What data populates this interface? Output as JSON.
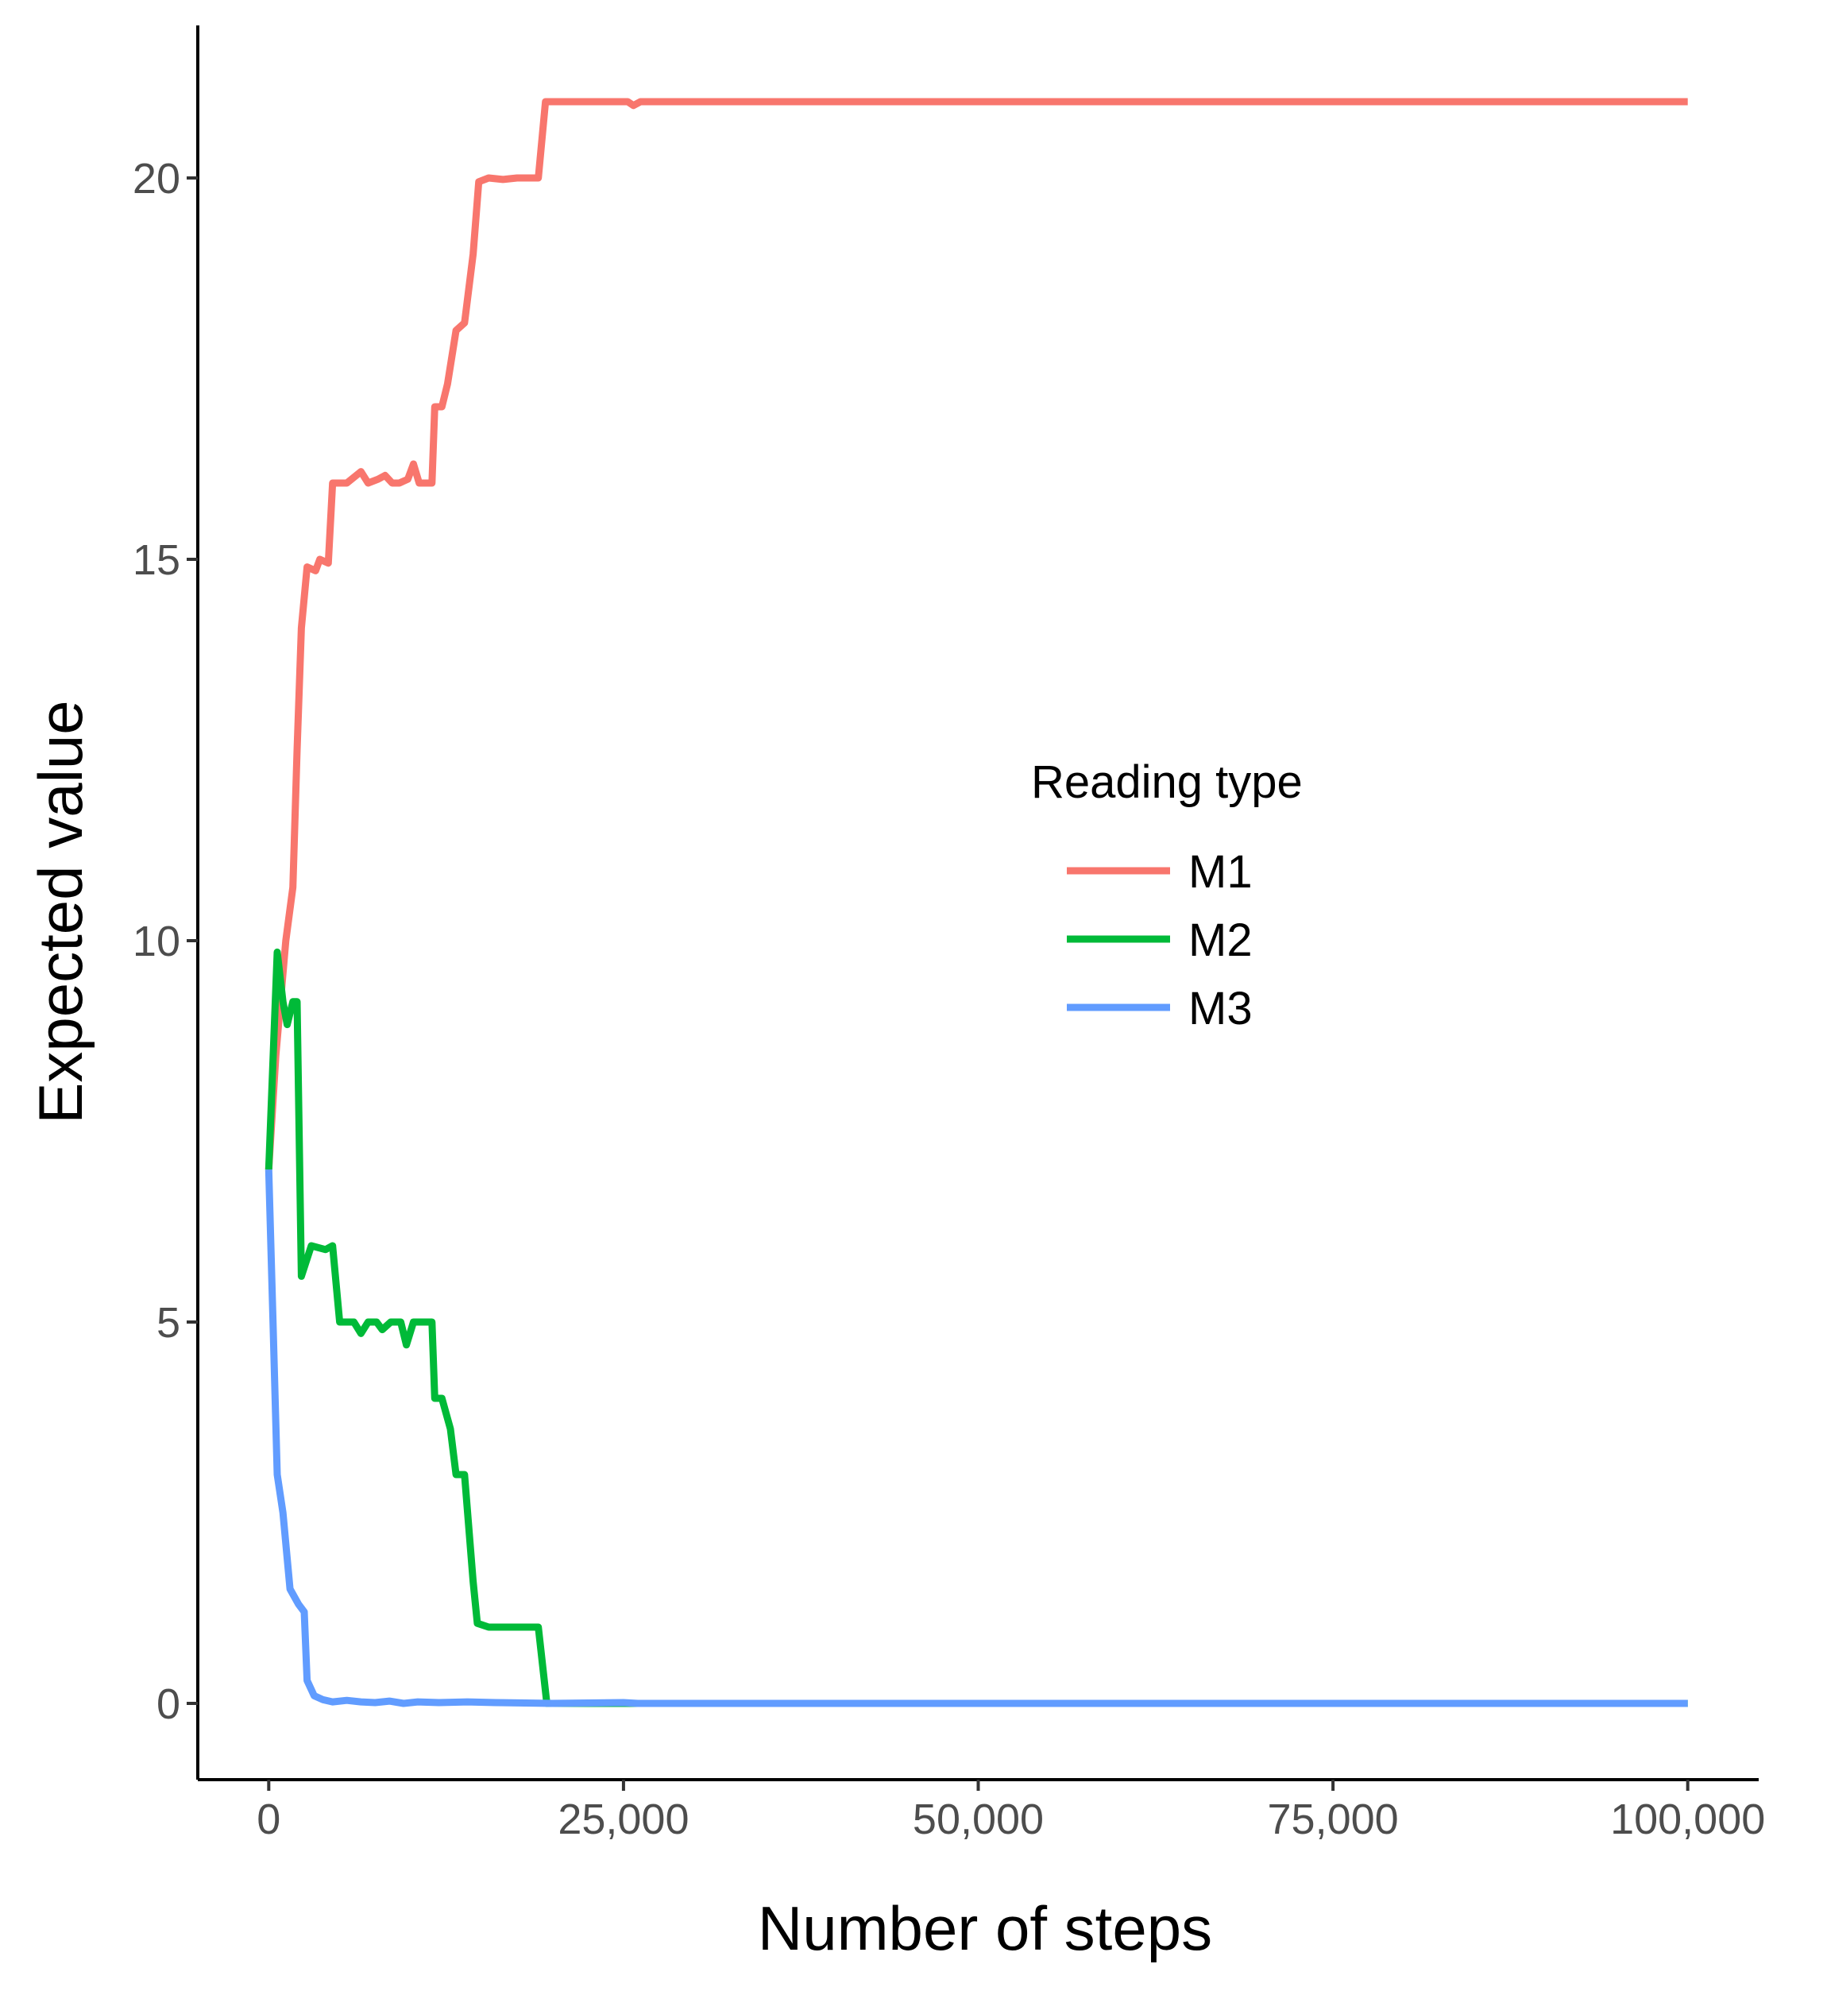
{
  "chart_data": {
    "type": "line",
    "xlabel": "Number of steps",
    "ylabel": "Expected value",
    "xlim": [
      -5000,
      105000
    ],
    "ylim": [
      -1,
      22
    ],
    "x_ticks": [
      0,
      25000,
      50000,
      75000,
      100000
    ],
    "x_tick_labels": [
      "0",
      "25,000",
      "50,000",
      "75,000",
      "100,000"
    ],
    "y_ticks": [
      0,
      5,
      10,
      15,
      20
    ],
    "y_tick_labels": [
      "0",
      "5",
      "10",
      "15",
      "20"
    ],
    "grid": false,
    "legend": {
      "title": "Reading type",
      "placement": "right-center"
    },
    "series": [
      {
        "name": "M1",
        "color": "#F8766D",
        "points": [
          [
            0,
            7
          ],
          [
            500,
            8.5
          ],
          [
            1200,
            10
          ],
          [
            1700,
            10.7
          ],
          [
            2000,
            12.5
          ],
          [
            2300,
            14.1
          ],
          [
            2700,
            14.9
          ],
          [
            3300,
            14.85
          ],
          [
            3600,
            15
          ],
          [
            4200,
            14.95
          ],
          [
            4500,
            16
          ],
          [
            5500,
            16
          ],
          [
            6500,
            16.15
          ],
          [
            7000,
            16
          ],
          [
            7700,
            16.05
          ],
          [
            8200,
            16.1
          ],
          [
            8700,
            16
          ],
          [
            9200,
            16
          ],
          [
            9800,
            16.05
          ],
          [
            10200,
            16.25
          ],
          [
            10600,
            16
          ],
          [
            11000,
            16
          ],
          [
            11500,
            16
          ],
          [
            11700,
            17
          ],
          [
            12200,
            17
          ],
          [
            12600,
            17.3
          ],
          [
            13200,
            18
          ],
          [
            13800,
            18.1
          ],
          [
            14400,
            19
          ],
          [
            14800,
            19.95
          ],
          [
            15500,
            20
          ],
          [
            16500,
            19.98
          ],
          [
            17500,
            20
          ],
          [
            19000,
            20
          ],
          [
            19500,
            21
          ],
          [
            24000,
            21
          ],
          [
            25300,
            21
          ],
          [
            25700,
            20.95
          ],
          [
            26200,
            21
          ],
          [
            30000,
            21
          ],
          [
            50000,
            21
          ],
          [
            75000,
            21
          ],
          [
            100000,
            21
          ]
        ]
      },
      {
        "name": "M2",
        "color": "#00BA38",
        "points": [
          [
            0,
            7
          ],
          [
            600,
            9.85
          ],
          [
            1000,
            9.2
          ],
          [
            1300,
            8.9
          ],
          [
            1700,
            9.2
          ],
          [
            2000,
            9.2
          ],
          [
            2300,
            5.6
          ],
          [
            3000,
            6
          ],
          [
            4000,
            5.95
          ],
          [
            4500,
            6
          ],
          [
            5000,
            5
          ],
          [
            6000,
            5
          ],
          [
            6500,
            4.85
          ],
          [
            7000,
            5
          ],
          [
            7600,
            5
          ],
          [
            8000,
            4.9
          ],
          [
            8600,
            5
          ],
          [
            9300,
            5
          ],
          [
            9700,
            4.7
          ],
          [
            10200,
            5
          ],
          [
            11500,
            5
          ],
          [
            11700,
            4
          ],
          [
            12200,
            4
          ],
          [
            12800,
            3.6
          ],
          [
            13200,
            3
          ],
          [
            13800,
            3
          ],
          [
            14400,
            1.6
          ],
          [
            14700,
            1.05
          ],
          [
            15500,
            1
          ],
          [
            17000,
            1
          ],
          [
            18000,
            1
          ],
          [
            18500,
            1
          ],
          [
            19000,
            1
          ],
          [
            19600,
            0
          ],
          [
            22000,
            0
          ],
          [
            100000,
            0
          ]
        ]
      },
      {
        "name": "M3",
        "color": "#619CFF",
        "points": [
          [
            0,
            7
          ],
          [
            300,
            5
          ],
          [
            600,
            3
          ],
          [
            1000,
            2.5
          ],
          [
            1500,
            1.5
          ],
          [
            2100,
            1.3
          ],
          [
            2500,
            1.2
          ],
          [
            2700,
            0.3
          ],
          [
            3200,
            0.1
          ],
          [
            3800,
            0.05
          ],
          [
            4500,
            0.02
          ],
          [
            5500,
            0.04
          ],
          [
            6500,
            0.02
          ],
          [
            7500,
            0.01
          ],
          [
            8500,
            0.03
          ],
          [
            9500,
            0
          ],
          [
            10500,
            0.02
          ],
          [
            12000,
            0.01
          ],
          [
            14000,
            0.02
          ],
          [
            16000,
            0.01
          ],
          [
            20000,
            0
          ],
          [
            25000,
            0.01
          ],
          [
            26000,
            0
          ],
          [
            40000,
            0
          ],
          [
            60000,
            0
          ],
          [
            80000,
            0
          ],
          [
            100000,
            0
          ]
        ]
      }
    ]
  }
}
